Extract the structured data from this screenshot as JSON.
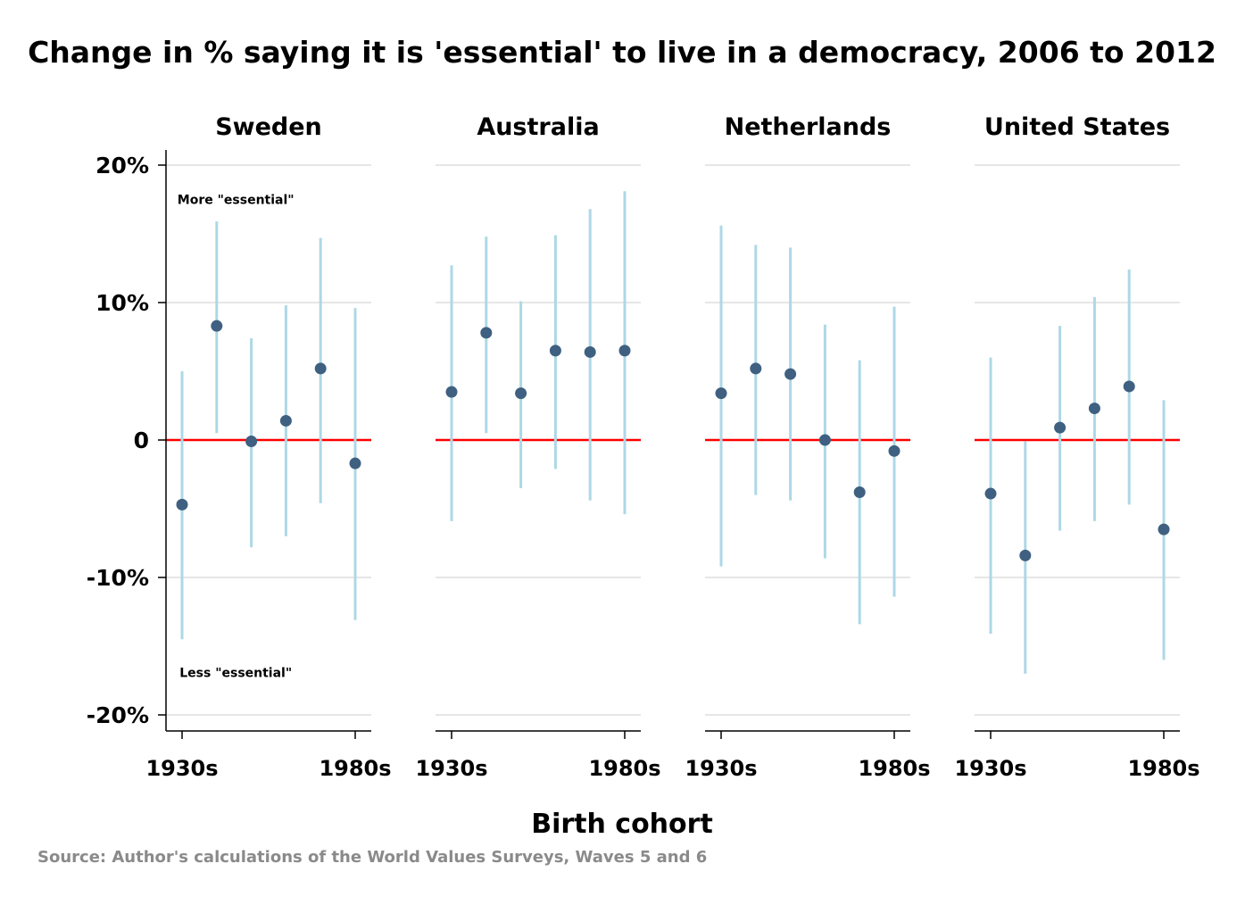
{
  "chart_data": {
    "type": "scatter",
    "title": "Change in % saying it is 'essential' to live in a democracy, 2006 to 2012",
    "xlabel": "Birth cohort",
    "ylabel": "",
    "ylim": [
      -20,
      20
    ],
    "yticks": [
      {
        "value": 20,
        "label": "20%"
      },
      {
        "value": 10,
        "label": "10%"
      },
      {
        "value": 0,
        "label": "0"
      },
      {
        "value": -10,
        "label": "-10%"
      },
      {
        "value": -20,
        "label": "-20%"
      }
    ],
    "x": [
      "1930s",
      "1940s",
      "1950s",
      "1960s",
      "1970s",
      "1980s"
    ],
    "xtick_labels": [
      {
        "value": "1930s",
        "label": "1930s"
      },
      {
        "value": "1980s",
        "label": "1980s"
      }
    ],
    "grid": true,
    "reference_line": {
      "y": 0,
      "color": "#ff0000"
    },
    "annotations": [
      {
        "panel": "Sweden",
        "text": "More \"essential\"",
        "y": 17.5
      },
      {
        "panel": "Sweden",
        "text": "Less \"essential\"",
        "y": -16.9
      }
    ],
    "colors": {
      "point": "#3f6080",
      "interval": "#add8e6",
      "zero_line": "#ff0000",
      "grid": "#e6e6e6"
    },
    "panels": [
      {
        "name": "Sweden",
        "values": [
          -4.7,
          8.3,
          -0.1,
          1.4,
          5.2,
          -1.7
        ],
        "lower": [
          -14.5,
          0.5,
          -7.8,
          -7.0,
          -4.6,
          -13.1
        ],
        "upper": [
          5.0,
          15.9,
          7.4,
          9.8,
          14.7,
          9.6
        ]
      },
      {
        "name": "Australia",
        "values": [
          3.5,
          7.8,
          3.4,
          6.5,
          6.4,
          6.5
        ],
        "lower": [
          -5.9,
          0.5,
          -3.5,
          -2.1,
          -4.4,
          -5.4
        ],
        "upper": [
          12.7,
          14.8,
          10.1,
          14.9,
          16.8,
          18.1
        ]
      },
      {
        "name": "Netherlands",
        "values": [
          3.4,
          5.2,
          4.8,
          0.0,
          -3.8,
          -0.8
        ],
        "lower": [
          -9.2,
          -4.0,
          -4.4,
          -8.6,
          -13.4,
          -11.4
        ],
        "upper": [
          15.6,
          14.2,
          14.0,
          8.4,
          5.8,
          9.7
        ]
      },
      {
        "name": "United States",
        "values": [
          -3.9,
          -8.4,
          0.9,
          2.3,
          3.9,
          -6.5
        ],
        "lower": [
          -14.1,
          -17.0,
          -6.6,
          -5.9,
          -4.7,
          -16.0
        ],
        "upper": [
          6.0,
          -0.1,
          8.3,
          10.4,
          12.4,
          2.9
        ]
      }
    ]
  },
  "source": "Source: Author's calculations of the World Values Surveys, Waves 5 and 6"
}
